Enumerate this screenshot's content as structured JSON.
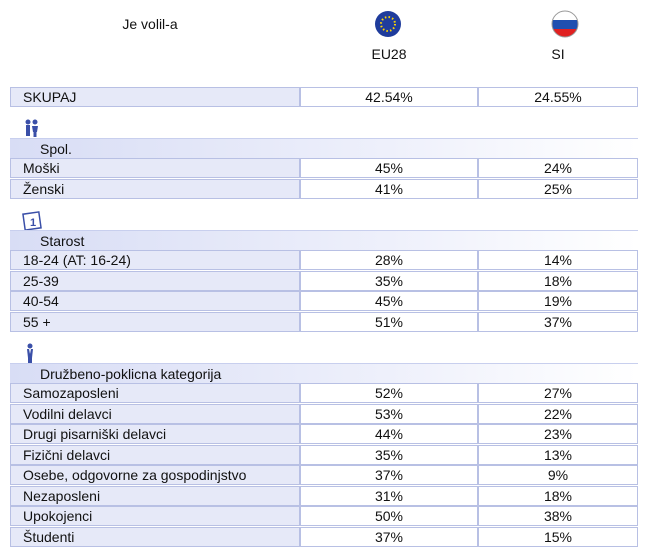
{
  "header": {
    "title": "Je volil-a",
    "columns": [
      "EU28",
      "SI"
    ]
  },
  "total": {
    "label": "SKUPAJ",
    "values": [
      "42.54%",
      "24.55%"
    ]
  },
  "sections": [
    {
      "title": "Spol.",
      "rows": [
        {
          "label": "Moški",
          "values": [
            "45%",
            "24%"
          ]
        },
        {
          "label": "Ženski",
          "values": [
            "41%",
            "25%"
          ]
        }
      ]
    },
    {
      "title": "Starost",
      "rows": [
        {
          "label": "18-24 (AT: 16-24)",
          "values": [
            "28%",
            "14%"
          ]
        },
        {
          "label": "25-39",
          "values": [
            "35%",
            "18%"
          ]
        },
        {
          "label": "40-54",
          "values": [
            "45%",
            "19%"
          ]
        },
        {
          "label": "55 +",
          "values": [
            "51%",
            "37%"
          ]
        }
      ]
    },
    {
      "title": "Družbeno-poklicna kategorija",
      "rows": [
        {
          "label": "Samozaposleni",
          "values": [
            "52%",
            "27%"
          ]
        },
        {
          "label": "Vodilni delavci",
          "values": [
            "53%",
            "22%"
          ]
        },
        {
          "label": "Drugi pisarniški delavci",
          "values": [
            "44%",
            "23%"
          ]
        },
        {
          "label": "Fizični delavci",
          "values": [
            "35%",
            "13%"
          ]
        },
        {
          "label": "Osebe, odgovorne za gospodinjstvo",
          "values": [
            "37%",
            "9%"
          ]
        },
        {
          "label": "Nezaposleni",
          "values": [
            "31%",
            "18%"
          ]
        },
        {
          "label": "Upokojenci",
          "values": [
            "50%",
            "38%"
          ]
        },
        {
          "label": "Študenti",
          "values": [
            "37%",
            "15%"
          ]
        }
      ]
    }
  ]
}
